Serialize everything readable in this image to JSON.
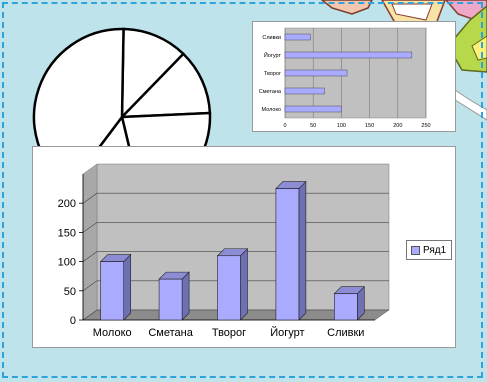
{
  "colors": {
    "background": "#bfe3ea",
    "border": "#2fa3dc",
    "bar": "#aaaaff",
    "bar_side": "#6f6fb3",
    "bar_top": "#8d8dd6",
    "plot_bg": "#c0c0c0"
  },
  "chart_data": [
    {
      "type": "pie",
      "slices": [
        12,
        12,
        22,
        14,
        40
      ]
    },
    {
      "type": "bar",
      "orientation": "horizontal",
      "categories": [
        "Молоко",
        "Сметана",
        "Творог",
        "Йогурт",
        "Сливки"
      ],
      "values": [
        100,
        70,
        110,
        225,
        45
      ],
      "xticks": [
        "0",
        "50",
        "100",
        "150",
        "200",
        "250"
      ],
      "xlim": [
        0,
        250
      ]
    },
    {
      "type": "bar",
      "bar_style": "3d",
      "categories": [
        "Молоко",
        "Сметана",
        "Творог",
        "Йогурт",
        "Сливки"
      ],
      "series": [
        {
          "name": "Ряд1",
          "values": [
            100,
            70,
            110,
            225,
            45
          ]
        }
      ],
      "yticks": [
        "0",
        "50",
        "100",
        "150",
        "200"
      ],
      "ylim": [
        0,
        250
      ],
      "grid": true,
      "legend": "right"
    }
  ]
}
